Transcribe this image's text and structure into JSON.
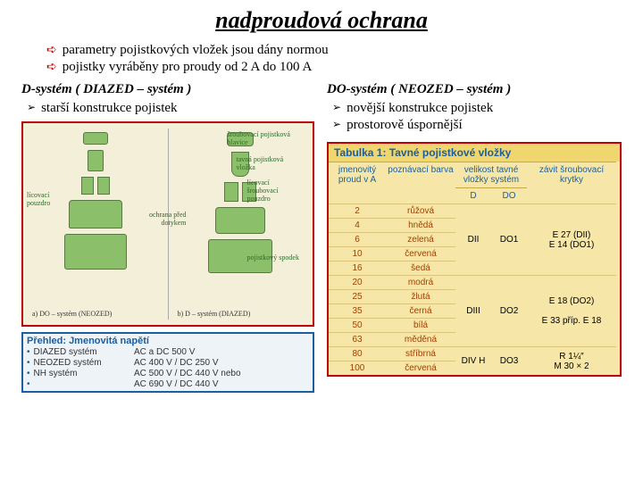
{
  "title": "nadproudová ochrana",
  "intro": {
    "b1": "parametry pojistkových vložek jsou dány normou",
    "b2": "pojistky vyráběny pro proudy od 2 A do 100 A"
  },
  "left": {
    "heading": "D-systém ( DIAZED – systém )",
    "sub1": "starší konstrukce pojistek",
    "diagram": {
      "label_sroub_hlavice": "šroubovací pojistková hlavice",
      "label_tavna": "tavná pojistková vložka",
      "label_licovaci_sroub": "lícovací šroubovací pouzdro",
      "label_licovaci_pouzdro": "lícovací pouzdro",
      "label_ochrana": "ochrana před dotykem",
      "label_spodek": "pojistkový spodek",
      "cap_a": "a) DO – systém (NEOZED)",
      "cap_b": "b) D – systém (DIAZED)",
      "bg": "#f4efd8",
      "border": "#c00000",
      "green": "#8bbf6a",
      "label_color": "#2a6a2a"
    },
    "overview": {
      "title": "Přehled: Jmenovitá napětí",
      "rows": [
        {
          "k": "DIAZED systém",
          "v": "AC a DC 500 V"
        },
        {
          "k": "NEOZED systém",
          "v": "AC 400 V / DC 250 V"
        },
        {
          "k": "NH systém",
          "v": "AC 500 V / DC 440 V nebo"
        },
        {
          "k": "",
          "v": "AC 690 V / DC 440 V"
        }
      ],
      "border": "#1a5fa0",
      "bg": "#eef3f8"
    }
  },
  "right": {
    "heading": "DO-systém ( NEOZED – systém )",
    "sub1": "novější konstrukce pojistek",
    "sub2": "prostorově úspornější",
    "table": {
      "title": "Tabulka 1: Tavné pojistkové vložky",
      "bg": "#f6e7a8",
      "border": "#c00000",
      "title_bg": "#f0d66e",
      "head_color": "#1a5fa0",
      "headers": {
        "c1": "jmenovitý proud v A",
        "c2": "poznávací barva",
        "c3_top": "velikost tavné vložky systém",
        "c3": "D",
        "c4": "DO",
        "c5": "závit šroubovací krytky"
      },
      "rows": [
        {
          "a": "2",
          "color": "růžová"
        },
        {
          "a": "4",
          "color": "hnědá"
        },
        {
          "a": "6",
          "color": "zelená",
          "d": "DII",
          "do": "DO1",
          "z": "E 27 (DII)\nE 14 (DO1)"
        },
        {
          "a": "10",
          "color": "červená"
        },
        {
          "a": "16",
          "color": "šedá"
        },
        {
          "a": "20",
          "color": "modrá"
        },
        {
          "a": "25",
          "color": "žlutá"
        },
        {
          "a": "35",
          "color": "černá",
          "d": "DIII",
          "do": "DO2",
          "z": "E 18 (DO2)\n\nE 33 příp. E 18"
        },
        {
          "a": "50",
          "color": "bílá"
        },
        {
          "a": "63",
          "color": "měděná"
        },
        {
          "a": "80",
          "color": "stříbrná",
          "d": "DIV H",
          "do": "DO3",
          "z": "R 1¼″\nM 30 × 2"
        },
        {
          "a": "100",
          "color": "červená"
        }
      ]
    }
  }
}
